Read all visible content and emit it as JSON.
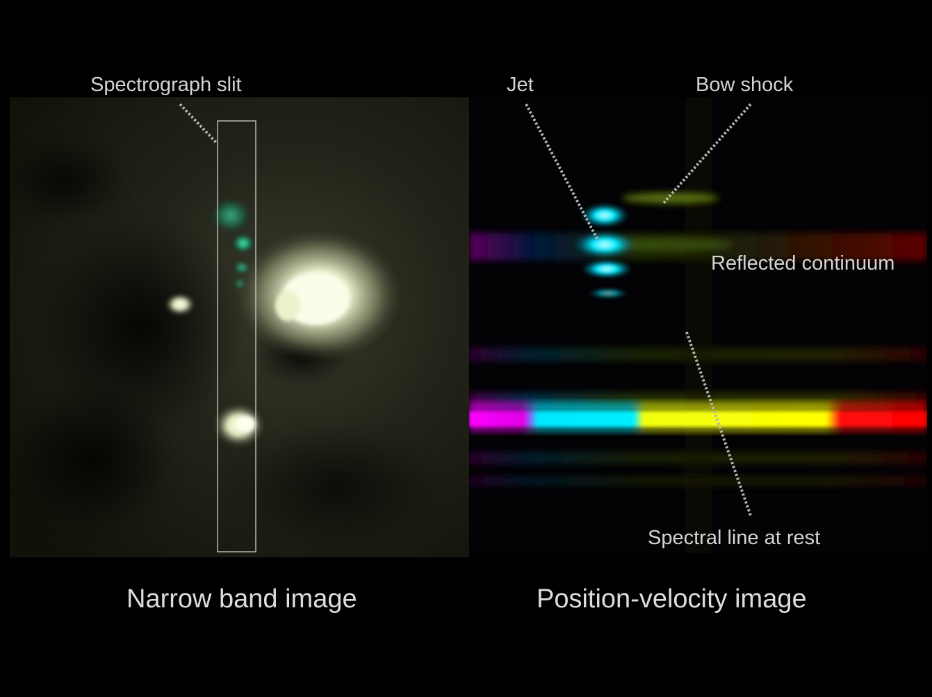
{
  "annotations": {
    "slit_label": "Spectrograph slit",
    "jet_label": "Jet",
    "bow_label": "Bow shock",
    "continuum_label": "Reflected continuum",
    "rest_label": "Spectral line at rest"
  },
  "captions": {
    "left": "Narrow band image",
    "right": "Position-velocity image"
  },
  "colors": {
    "background": "#000000",
    "label_text": "#d4d4d4",
    "leader_line": "#b5b5b5",
    "slit_outline": "#cfcfcf",
    "band_magenta": "#ff00ff",
    "band_cyan": "#00f0ff",
    "band_yellow": "#ffff00",
    "band_red": "#ff0000",
    "nebula_glow": "#f5f8d8",
    "knot_green": "#20c890"
  }
}
